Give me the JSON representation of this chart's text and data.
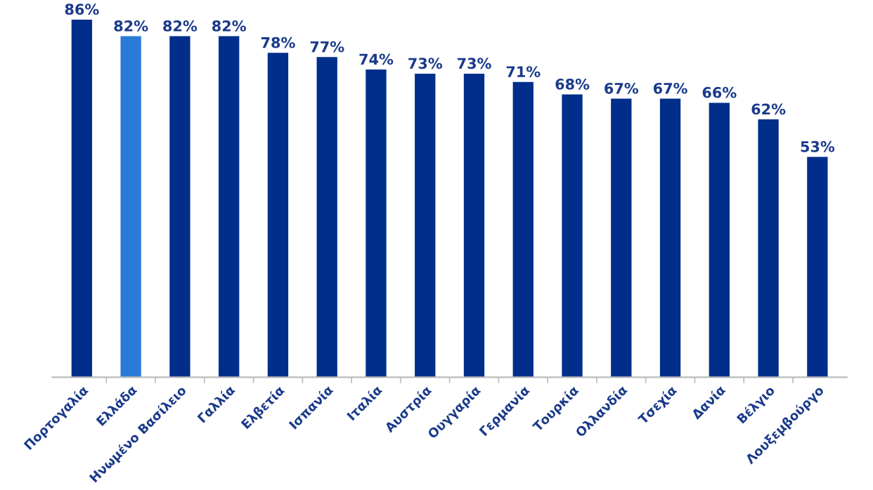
{
  "chart_data": {
    "type": "bar",
    "categories": [
      "Πορτογαλία",
      "Ελλάδα",
      "Ηνωμένο Βασίλειο",
      "Γαλλία",
      "Ελβετία",
      "Ισπανία",
      "Ιταλία",
      "Αυστρία",
      "Ουγγαρία",
      "Γερμανία",
      "Τουρκία",
      "Ολλανδία",
      "Τσεχία",
      "Δανία",
      "Βέλγιο",
      "Λουξεμβούργο"
    ],
    "values": [
      86,
      82,
      82,
      82,
      78,
      77,
      74,
      73,
      73,
      71,
      68,
      67,
      67,
      66,
      62,
      53
    ],
    "value_labels": [
      "86%",
      "82%",
      "82%",
      "82%",
      "78%",
      "77%",
      "74%",
      "73%",
      "73%",
      "71%",
      "68%",
      "67%",
      "67%",
      "66%",
      "62%",
      "53%"
    ],
    "colors": [
      "#002e8a",
      "#2a7ad8",
      "#002e8a",
      "#002e8a",
      "#002e8a",
      "#002e8a",
      "#002e8a",
      "#002e8a",
      "#002e8a",
      "#002e8a",
      "#002e8a",
      "#002e8a",
      "#002e8a",
      "#002e8a",
      "#002e8a",
      "#002e8a"
    ],
    "grid": false,
    "legend": false
  }
}
